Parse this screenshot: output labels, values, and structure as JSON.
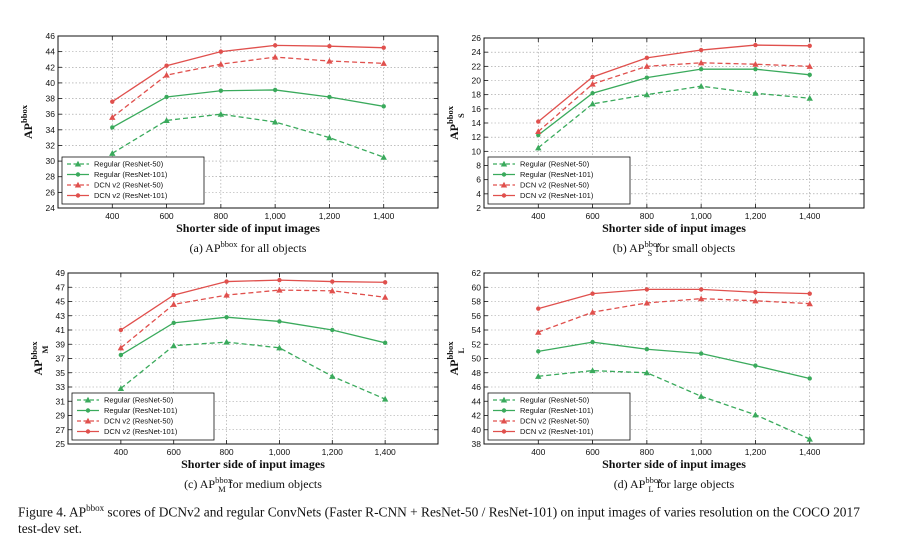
{
  "chart_data": [
    {
      "type": "line",
      "id": "a",
      "ylabel": "AP",
      "ylabel_sup": "bbox",
      "ylabel_sub": "",
      "xlabel": "Shorter side of input images",
      "x": [
        400,
        600,
        800,
        1000,
        1200,
        1400
      ],
      "x_tick_labels": [
        "400",
        "600",
        "800",
        "1,000",
        "1,200",
        "1,400"
      ],
      "ylim": [
        24,
        46
      ],
      "y_ticks": [
        24,
        26,
        28,
        30,
        32,
        34,
        36,
        38,
        40,
        42,
        44,
        46
      ],
      "grid": true,
      "legend_position": "bottom-left",
      "caption_prefix": "(a) AP",
      "caption_sup": "bbox",
      "caption_sub": "",
      "caption_suffix": " for all objects",
      "series": [
        {
          "name": "Regular (ResNet-50)",
          "values": [
            31.0,
            35.2,
            36.0,
            35.0,
            33.0,
            30.5
          ]
        },
        {
          "name": "Regular (ResNet-101)",
          "values": [
            34.3,
            38.2,
            39.0,
            39.1,
            38.2,
            37.0
          ]
        },
        {
          "name": "DCN v2 (ResNet-50)",
          "values": [
            35.6,
            41.0,
            42.4,
            43.3,
            42.8,
            42.5
          ]
        },
        {
          "name": "DCN v2 (ResNet-101)",
          "values": [
            37.6,
            42.2,
            44.0,
            44.8,
            44.7,
            44.5
          ]
        }
      ]
    },
    {
      "type": "line",
      "id": "b",
      "ylabel": "AP",
      "ylabel_sup": "bbox",
      "ylabel_sub": "S",
      "xlabel": "Shorter side of input images",
      "x": [
        400,
        600,
        800,
        1000,
        1200,
        1400
      ],
      "x_tick_labels": [
        "400",
        "600",
        "800",
        "1,000",
        "1,200",
        "1,400"
      ],
      "ylim": [
        2,
        26
      ],
      "y_ticks": [
        2,
        4,
        6,
        8,
        10,
        12,
        14,
        16,
        18,
        20,
        22,
        24,
        26
      ],
      "grid": true,
      "legend_position": "bottom-left",
      "caption_prefix": "(b) AP",
      "caption_sup": "bbox",
      "caption_sub": "S",
      "caption_suffix": " for small objects",
      "series": [
        {
          "name": "Regular (ResNet-50)",
          "values": [
            10.5,
            16.7,
            18.0,
            19.2,
            18.2,
            17.5
          ]
        },
        {
          "name": "Regular (ResNet-101)",
          "values": [
            12.3,
            18.2,
            20.4,
            21.6,
            21.6,
            20.8
          ]
        },
        {
          "name": "DCN v2 (ResNet-50)",
          "values": [
            12.8,
            19.5,
            22.0,
            22.5,
            22.3,
            22.0
          ]
        },
        {
          "name": "DCN v2 (ResNet-101)",
          "values": [
            14.2,
            20.5,
            23.2,
            24.3,
            25.0,
            24.9
          ]
        }
      ]
    },
    {
      "type": "line",
      "id": "c",
      "ylabel": "AP",
      "ylabel_sup": "bbox",
      "ylabel_sub": "M",
      "xlabel": "Shorter side of input images",
      "x": [
        400,
        600,
        800,
        1000,
        1200,
        1400
      ],
      "x_tick_labels": [
        "400",
        "600",
        "800",
        "1,000",
        "1,200",
        "1,400"
      ],
      "ylim": [
        25,
        49
      ],
      "y_ticks": [
        25,
        27,
        29,
        31,
        33,
        35,
        37,
        39,
        41,
        43,
        45,
        47,
        49
      ],
      "grid": true,
      "legend_position": "bottom-left",
      "caption_prefix": "(c) AP",
      "caption_sup": "bbox",
      "caption_sub": "M",
      "caption_suffix": " for medium objects",
      "series": [
        {
          "name": "Regular (ResNet-50)",
          "values": [
            32.8,
            38.8,
            39.3,
            38.5,
            34.5,
            31.3
          ]
        },
        {
          "name": "Regular (ResNet-101)",
          "values": [
            37.5,
            42.0,
            42.8,
            42.2,
            41.0,
            39.2
          ]
        },
        {
          "name": "DCN v2 (ResNet-50)",
          "values": [
            38.5,
            44.6,
            45.9,
            46.6,
            46.5,
            45.6
          ]
        },
        {
          "name": "DCN v2 (ResNet-101)",
          "values": [
            41.0,
            45.9,
            47.8,
            48.0,
            47.8,
            47.7
          ]
        }
      ]
    },
    {
      "type": "line",
      "id": "d",
      "ylabel": "AP",
      "ylabel_sup": "bbox",
      "ylabel_sub": "L",
      "xlabel": "Shorter side of input images",
      "x": [
        400,
        600,
        800,
        1000,
        1200,
        1400
      ],
      "x_tick_labels": [
        "400",
        "600",
        "800",
        "1,000",
        "1,200",
        "1,400"
      ],
      "ylim": [
        38,
        62
      ],
      "y_ticks": [
        38,
        40,
        42,
        44,
        46,
        48,
        50,
        52,
        54,
        56,
        58,
        60,
        62
      ],
      "grid": true,
      "legend_position": "bottom-left",
      "caption_prefix": "(d) AP",
      "caption_sup": "bbox",
      "caption_sub": "L",
      "caption_suffix": " for large objects",
      "series": [
        {
          "name": "Regular (ResNet-50)",
          "values": [
            47.5,
            48.3,
            48.0,
            44.7,
            42.1,
            38.7
          ]
        },
        {
          "name": "Regular (ResNet-101)",
          "values": [
            51.0,
            52.3,
            51.3,
            50.7,
            49.0,
            47.2
          ]
        },
        {
          "name": "DCN v2 (ResNet-50)",
          "values": [
            53.7,
            56.5,
            57.8,
            58.4,
            58.1,
            57.7
          ]
        },
        {
          "name": "DCN v2 (ResNet-101)",
          "values": [
            57.0,
            59.1,
            59.7,
            59.7,
            59.3,
            59.1
          ]
        }
      ]
    }
  ],
  "series_styles": [
    {
      "color": "#3aaa5c",
      "dash": "5,3",
      "marker": "triangle"
    },
    {
      "color": "#3aaa5c",
      "dash": "",
      "marker": "dot"
    },
    {
      "color": "#e0504d",
      "dash": "5,3",
      "marker": "triangle"
    },
    {
      "color": "#e0504d",
      "dash": "",
      "marker": "dot"
    }
  ],
  "figure_caption": {
    "prefix": "Figure 4. AP",
    "sup": "bbox",
    "text": " scores of DCNv2 and regular ConvNets (Faster R-CNN + ResNet-50 / ResNet-101) on input images of varies resolution on the COCO 2017 test-dev set."
  }
}
